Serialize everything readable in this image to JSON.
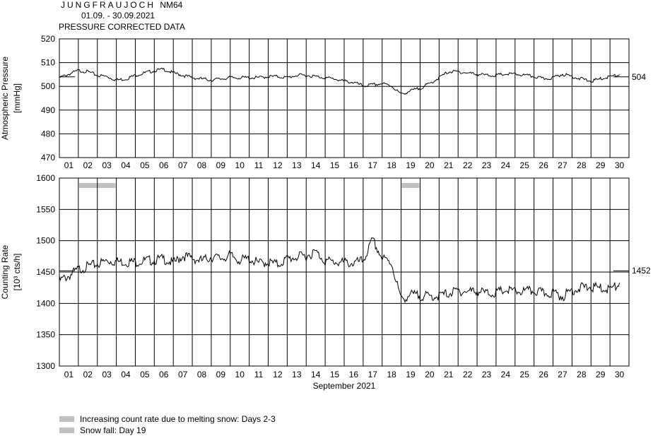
{
  "header": {
    "station": "JUNGFRAUJOCH",
    "station_tag": "NM64",
    "date_range": "01.09. - 30.09.2021",
    "subtitle": "PRESSURE CORRECTED DATA"
  },
  "legend": {
    "items": [
      {
        "label": "Increasing count rate due to melting snow: Days 2-3",
        "color": "#c0c0c0"
      },
      {
        "label": "Snow fall: Day 19",
        "color": "#c0c0c0"
      }
    ]
  },
  "chart_data": [
    {
      "type": "line",
      "ylabel": [
        "Atmospheric Pressure",
        "[mmHg]"
      ],
      "ylim": [
        470,
        520
      ],
      "yticks": [
        470,
        480,
        490,
        500,
        510,
        520
      ],
      "x_label": "",
      "x_tick_labels": [
        "01",
        "02",
        "03",
        "04",
        "05",
        "06",
        "07",
        "08",
        "09",
        "10",
        "11",
        "12",
        "13",
        "14",
        "15",
        "16",
        "17",
        "18",
        "19",
        "20",
        "21",
        "22",
        "23",
        "24",
        "25",
        "26",
        "27",
        "28",
        "29",
        "30"
      ],
      "grid": true,
      "reference_value": 504,
      "reference_label": "504",
      "series": [
        {
          "x": [
            1,
            1.5,
            2,
            2.5,
            3,
            3.5,
            4,
            4.5,
            5,
            5.5,
            6,
            6.5,
            7,
            7.5,
            8,
            8.5,
            9,
            9.5,
            10,
            10.5,
            11,
            11.5,
            12,
            12.5,
            13,
            13.5,
            14,
            14.5,
            15,
            15.5,
            16,
            16.5,
            17,
            17.5,
            18,
            18.5,
            19,
            19.5,
            20,
            20.5,
            21,
            21.5,
            22,
            22.5,
            23,
            23.5,
            24,
            24.5,
            25,
            25.5,
            26,
            26.5,
            27,
            27.5,
            28,
            28.5,
            29,
            29.5,
            30,
            30.5
          ],
          "values": [
            504,
            505.5,
            507,
            506.5,
            505,
            504.5,
            503,
            503.5,
            505,
            506,
            507,
            507.5,
            506,
            505,
            504,
            503.5,
            503,
            503.5,
            504,
            504,
            504,
            504,
            504.5,
            504.5,
            504,
            505,
            505,
            504.5,
            504,
            503.5,
            502.5,
            502,
            500.5,
            501,
            501.5,
            500.5,
            497,
            498.5,
            499.5,
            501.5,
            504,
            506.5,
            506.5,
            506,
            505.5,
            505,
            505,
            505.5,
            505.5,
            505,
            504.5,
            503.5,
            504,
            505.5,
            504.5,
            503.5,
            502.5,
            503.5,
            504.5,
            505
          ]
        }
      ]
    },
    {
      "type": "line",
      "ylabel": [
        "Counting Rate",
        "[10³ cts/h]"
      ],
      "ylim": [
        1300,
        1600
      ],
      "yticks": [
        1300,
        1350,
        1400,
        1450,
        1500,
        1550,
        1600
      ],
      "x_label": "September 2021",
      "x_tick_labels": [
        "01",
        "02",
        "03",
        "04",
        "05",
        "06",
        "07",
        "08",
        "09",
        "10",
        "11",
        "12",
        "13",
        "14",
        "15",
        "16",
        "17",
        "18",
        "19",
        "20",
        "21",
        "22",
        "23",
        "24",
        "25",
        "26",
        "27",
        "28",
        "29",
        "30"
      ],
      "grid": true,
      "reference_value": 1452,
      "reference_label": "1452",
      "shaded_periods": [
        {
          "start_day": 2,
          "end_day": 3
        },
        {
          "start_day": 19,
          "end_day": 19
        }
      ],
      "series": [
        {
          "x": [
            1,
            1.5,
            2,
            2.5,
            3,
            3.5,
            4,
            4.5,
            5,
            5.5,
            6,
            6.5,
            7,
            7.5,
            8,
            8.5,
            9,
            9.5,
            10,
            10.5,
            11,
            11.5,
            12,
            12.5,
            13,
            13.5,
            14,
            14.5,
            15,
            15.5,
            16,
            16.5,
            17,
            17.5,
            18,
            18.5,
            19,
            19.5,
            20,
            20.5,
            21,
            21.5,
            22,
            22.5,
            23,
            23.5,
            24,
            24.5,
            25,
            25.5,
            26,
            26.5,
            27,
            27.5,
            28,
            28.5,
            29,
            29.5,
            30,
            30.5
          ],
          "values": [
            1440,
            1448,
            1458,
            1463,
            1467,
            1472,
            1471,
            1470,
            1470,
            1472,
            1473,
            1475,
            1468,
            1480,
            1476,
            1472,
            1478,
            1476,
            1480,
            1473,
            1475,
            1468,
            1470,
            1466,
            1475,
            1478,
            1480,
            1486,
            1472,
            1470,
            1469,
            1468,
            1472,
            1505,
            1476,
            1468,
            1410,
            1418,
            1416,
            1415,
            1416,
            1420,
            1424,
            1423,
            1424,
            1420,
            1421,
            1425,
            1423,
            1423,
            1424,
            1420,
            1421,
            1415,
            1425,
            1429,
            1430,
            1428,
            1427,
            1433
          ]
        }
      ]
    }
  ]
}
